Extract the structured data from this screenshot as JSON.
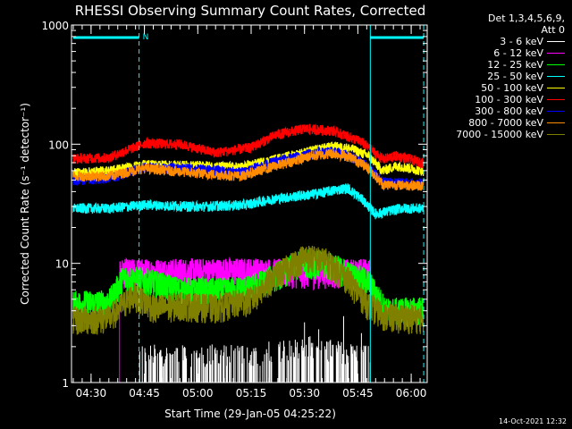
{
  "chart_data": {
    "type": "line",
    "title": "RHESSI Observing Summary Count Rates, Corrected",
    "xlabel": "Start Time (29-Jan-05 04:25:22)",
    "ylabel": "Corrected Count Rate (s⁻¹ detector⁻¹)",
    "yscale": "log",
    "ylim": [
      1,
      1000
    ],
    "xlim_minutes": [
      264.5,
      364.5
    ],
    "x_ticks": [
      {
        "t": 270,
        "label": "04:30"
      },
      {
        "t": 285,
        "label": "04:45"
      },
      {
        "t": 300,
        "label": "05:00"
      },
      {
        "t": 315,
        "label": "05:15"
      },
      {
        "t": 330,
        "label": "05:30"
      },
      {
        "t": 345,
        "label": "05:45"
      },
      {
        "t": 360,
        "label": "06:00"
      }
    ],
    "y_ticks": [
      {
        "v": 1,
        "label": "1"
      },
      {
        "v": 10,
        "label": "10"
      },
      {
        "v": 100,
        "label": "100"
      },
      {
        "v": 1000,
        "label": "1000"
      }
    ],
    "detector_note": [
      "Det 1,3,4,5,6,9,",
      "Att 0"
    ],
    "legend_location": "right",
    "night_bars": [
      [
        265,
        283.5
      ],
      [
        348.5,
        363.5
      ]
    ],
    "night_label": "N",
    "vertical_lines": [
      {
        "t": 283.5,
        "style": "dashed"
      },
      {
        "t": 348.5,
        "style": "solid"
      },
      {
        "t": 363.5,
        "style": "dashed"
      }
    ],
    "series": [
      {
        "name": "3 - 6 keV",
        "color": "#ffffff",
        "t_start": 283.5,
        "t_end": 348.5,
        "kp": [
          [
            284,
            1.5
          ],
          [
            300,
            1.5
          ],
          [
            318,
            1.5
          ],
          [
            330,
            1.8
          ],
          [
            340,
            1.6
          ],
          [
            348,
            1.5
          ]
        ]
      },
      {
        "name": "6 - 12 keV",
        "color": "#ff00ff",
        "t_start": 278,
        "t_end": 348.5,
        "kp": [
          [
            279,
            8.5
          ],
          [
            290,
            8.6
          ],
          [
            300,
            8.6
          ],
          [
            315,
            8.7
          ],
          [
            330,
            8.4
          ],
          [
            340,
            8.5
          ],
          [
            348,
            8.6
          ]
        ]
      },
      {
        "name": "12 - 25 keV",
        "color": "#00ff00",
        "t_start": 265,
        "t_end": 363.5,
        "kp": [
          [
            265,
            4.6
          ],
          [
            275,
            4.7
          ],
          [
            279,
            7.6
          ],
          [
            285,
            7.2
          ],
          [
            295,
            6.0
          ],
          [
            305,
            5.9
          ],
          [
            315,
            6.2
          ],
          [
            322,
            8.0
          ],
          [
            330,
            10.5
          ],
          [
            338,
            9.6
          ],
          [
            343,
            8.0
          ],
          [
            348,
            7.0
          ],
          [
            353,
            4.0
          ],
          [
            363,
            4.1
          ]
        ]
      },
      {
        "name": "25 - 50 keV",
        "color": "#00ffff",
        "t_start": 265,
        "t_end": 363.5,
        "kp": [
          [
            265,
            29
          ],
          [
            275,
            29
          ],
          [
            285,
            31
          ],
          [
            300,
            30
          ],
          [
            313,
            31
          ],
          [
            322,
            35
          ],
          [
            332,
            38
          ],
          [
            342,
            43
          ],
          [
            346,
            35
          ],
          [
            350,
            26
          ],
          [
            357,
            29
          ],
          [
            363,
            29
          ]
        ]
      },
      {
        "name": "50 - 100 keV",
        "color": "#ffff00",
        "t_start": 265,
        "t_end": 363.5,
        "kp": [
          [
            265,
            57
          ],
          [
            275,
            60
          ],
          [
            285,
            67
          ],
          [
            300,
            66
          ],
          [
            312,
            64
          ],
          [
            322,
            75
          ],
          [
            332,
            88
          ],
          [
            338,
            96
          ],
          [
            343,
            92
          ],
          [
            348,
            80
          ],
          [
            352,
            60
          ],
          [
            356,
            66
          ],
          [
            363,
            60
          ]
        ]
      },
      {
        "name": "100 - 300 keV",
        "color": "#ff0000",
        "t_start": 265,
        "t_end": 363.5,
        "kp": [
          [
            265,
            76
          ],
          [
            275,
            77
          ],
          [
            285,
            102
          ],
          [
            295,
            100
          ],
          [
            305,
            85
          ],
          [
            315,
            94
          ],
          [
            322,
            120
          ],
          [
            330,
            135
          ],
          [
            338,
            130
          ],
          [
            346,
            105
          ],
          [
            352,
            75
          ],
          [
            356,
            80
          ],
          [
            363,
            70
          ]
        ]
      },
      {
        "name": "300 - 800 keV",
        "color": "#0000ff",
        "t_start": 265,
        "t_end": 363.5,
        "kp": [
          [
            265,
            50
          ],
          [
            275,
            52
          ],
          [
            285,
            64
          ],
          [
            300,
            62
          ],
          [
            312,
            58
          ],
          [
            322,
            72
          ],
          [
            332,
            84
          ],
          [
            338,
            87
          ],
          [
            343,
            80
          ],
          [
            348,
            65
          ],
          [
            352,
            48
          ],
          [
            363,
            47
          ]
        ]
      },
      {
        "name": "800 - 7000 keV",
        "color": "#ff8c00",
        "t_start": 265,
        "t_end": 363.5,
        "kp": [
          [
            265,
            54
          ],
          [
            275,
            54
          ],
          [
            285,
            63
          ],
          [
            300,
            57
          ],
          [
            312,
            54
          ],
          [
            322,
            66
          ],
          [
            332,
            80
          ],
          [
            338,
            84
          ],
          [
            343,
            78
          ],
          [
            348,
            63
          ],
          [
            352,
            46
          ],
          [
            363,
            45
          ]
        ]
      },
      {
        "name": "7000 - 15000 keV",
        "color": "#808000",
        "t_start": 265,
        "t_end": 363.5,
        "kp": [
          [
            265,
            3.4
          ],
          [
            275,
            3.5
          ],
          [
            282,
            5.5
          ],
          [
            288,
            4.2
          ],
          [
            295,
            4.5
          ],
          [
            305,
            4.3
          ],
          [
            315,
            5.0
          ],
          [
            322,
            8.0
          ],
          [
            330,
            11.5
          ],
          [
            336,
            10.5
          ],
          [
            342,
            7.5
          ],
          [
            348,
            4.5
          ],
          [
            353,
            3.6
          ],
          [
            363,
            3.5
          ]
        ]
      }
    ]
  },
  "footer": {
    "timestamp": "14-Oct-2021 12:32"
  }
}
